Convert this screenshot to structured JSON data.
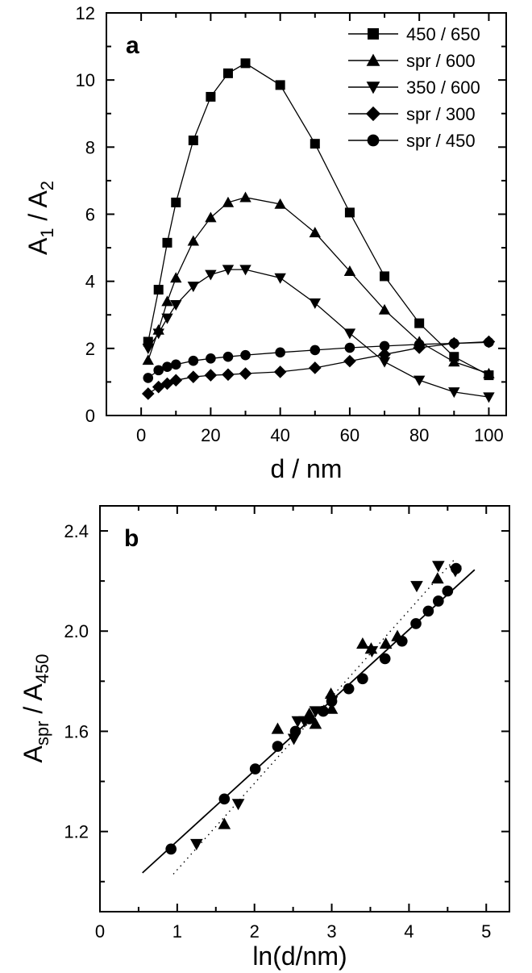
{
  "chart_data": [
    {
      "panel": "a",
      "type": "line",
      "xlabel": "d / nm",
      "ylabel_main": "A",
      "ylabel_sub1": "1",
      "ylabel_mid": " / A",
      "ylabel_sub2": "2",
      "xlim": [
        -10,
        105
      ],
      "ylim": [
        0,
        12
      ],
      "xticks": [
        0,
        20,
        40,
        60,
        80,
        100
      ],
      "yticks": [
        0,
        2,
        4,
        6,
        8,
        10,
        12
      ],
      "legend_position": "top-right",
      "series": [
        {
          "name": "450 / 650",
          "marker": "square",
          "x": [
            2,
            5,
            7.5,
            10,
            15,
            20,
            25,
            30,
            40,
            50,
            60,
            70,
            80,
            90,
            100
          ],
          "y": [
            2.2,
            3.75,
            5.15,
            6.35,
            8.2,
            9.5,
            10.2,
            10.5,
            9.85,
            8.1,
            6.05,
            4.15,
            2.75,
            1.75,
            1.2
          ]
        },
        {
          "name": "spr / 600",
          "marker": "triangle-up",
          "x": [
            2,
            5,
            7.5,
            10,
            15,
            20,
            25,
            30,
            40,
            50,
            60,
            70,
            80,
            90,
            100
          ],
          "y": [
            1.65,
            2.55,
            3.4,
            4.1,
            5.2,
            5.9,
            6.35,
            6.5,
            6.3,
            5.45,
            4.3,
            3.15,
            2.2,
            1.6,
            1.25
          ]
        },
        {
          "name": "350 / 600",
          "marker": "triangle-down",
          "x": [
            2,
            5,
            7.5,
            10,
            15,
            20,
            25,
            30,
            40,
            50,
            60,
            70,
            80,
            90,
            100
          ],
          "y": [
            2.0,
            2.45,
            2.9,
            3.3,
            3.85,
            4.2,
            4.35,
            4.35,
            4.1,
            3.35,
            2.45,
            1.6,
            1.05,
            0.7,
            0.55
          ]
        },
        {
          "name": "spr / 300",
          "marker": "diamond",
          "x": [
            2,
            5,
            7.5,
            10,
            15,
            20,
            25,
            30,
            40,
            50,
            60,
            70,
            80,
            90,
            100
          ],
          "y": [
            0.65,
            0.85,
            0.95,
            1.05,
            1.15,
            1.2,
            1.22,
            1.25,
            1.3,
            1.42,
            1.62,
            1.82,
            2.02,
            2.15,
            2.2
          ]
        },
        {
          "name": "spr / 450",
          "marker": "circle",
          "x": [
            2,
            5,
            7.5,
            10,
            15,
            20,
            25,
            30,
            40,
            50,
            60,
            70,
            80,
            90,
            100
          ],
          "y": [
            1.12,
            1.35,
            1.45,
            1.52,
            1.63,
            1.7,
            1.75,
            1.8,
            1.88,
            1.95,
            2.02,
            2.07,
            2.12,
            2.15,
            2.18
          ]
        }
      ]
    },
    {
      "panel": "b",
      "type": "scatter",
      "xlabel": "ln(d/nm)",
      "ylabel_main": "A",
      "ylabel_sub1": "spr",
      "ylabel_mid": " / A",
      "ylabel_sub2": "450",
      "xlim": [
        0,
        5.3
      ],
      "ylim": [
        0.88,
        2.5
      ],
      "xticks": [
        0,
        1,
        2,
        3,
        4,
        5
      ],
      "yticks": [
        1.2,
        1.6,
        2.0,
        2.4
      ],
      "yticklabels": [
        "1.2",
        "1.6",
        "2.0",
        "2.4"
      ],
      "series": [
        {
          "marker": "circle",
          "x": [
            0.92,
            1.61,
            2.01,
            2.3,
            2.53,
            2.71,
            2.89,
            3.0,
            3.22,
            3.4,
            3.69,
            3.91,
            4.09,
            4.25,
            4.38,
            4.5,
            4.61
          ],
          "y": [
            1.13,
            1.33,
            1.45,
            1.54,
            1.6,
            1.65,
            1.68,
            1.72,
            1.77,
            1.81,
            1.89,
            1.96,
            2.03,
            2.08,
            2.12,
            2.16,
            2.25
          ]
        },
        {
          "marker": "triangle-up",
          "x": [
            1.61,
            2.3,
            2.71,
            2.79,
            2.99,
            3.0,
            3.4,
            3.51,
            3.7,
            3.85,
            4.37
          ],
          "y": [
            1.23,
            1.61,
            1.67,
            1.63,
            1.75,
            1.69,
            1.95,
            1.93,
            1.95,
            1.98,
            2.21
          ]
        },
        {
          "marker": "triangle-down",
          "x": [
            1.25,
            1.79,
            2.51,
            2.56,
            2.65,
            2.79,
            3.0,
            3.52,
            4.1,
            4.38,
            4.6
          ],
          "y": [
            1.15,
            1.31,
            1.57,
            1.64,
            1.64,
            1.68,
            1.72,
            1.92,
            2.18,
            2.26,
            2.24
          ]
        }
      ],
      "fits": [
        {
          "style": "solid",
          "x": [
            0.55,
            4.85
          ],
          "y": [
            1.035,
            2.245
          ]
        },
        {
          "style": "dotted",
          "x": [
            0.95,
            4.6
          ],
          "y": [
            1.03,
            2.29
          ]
        }
      ]
    }
  ]
}
